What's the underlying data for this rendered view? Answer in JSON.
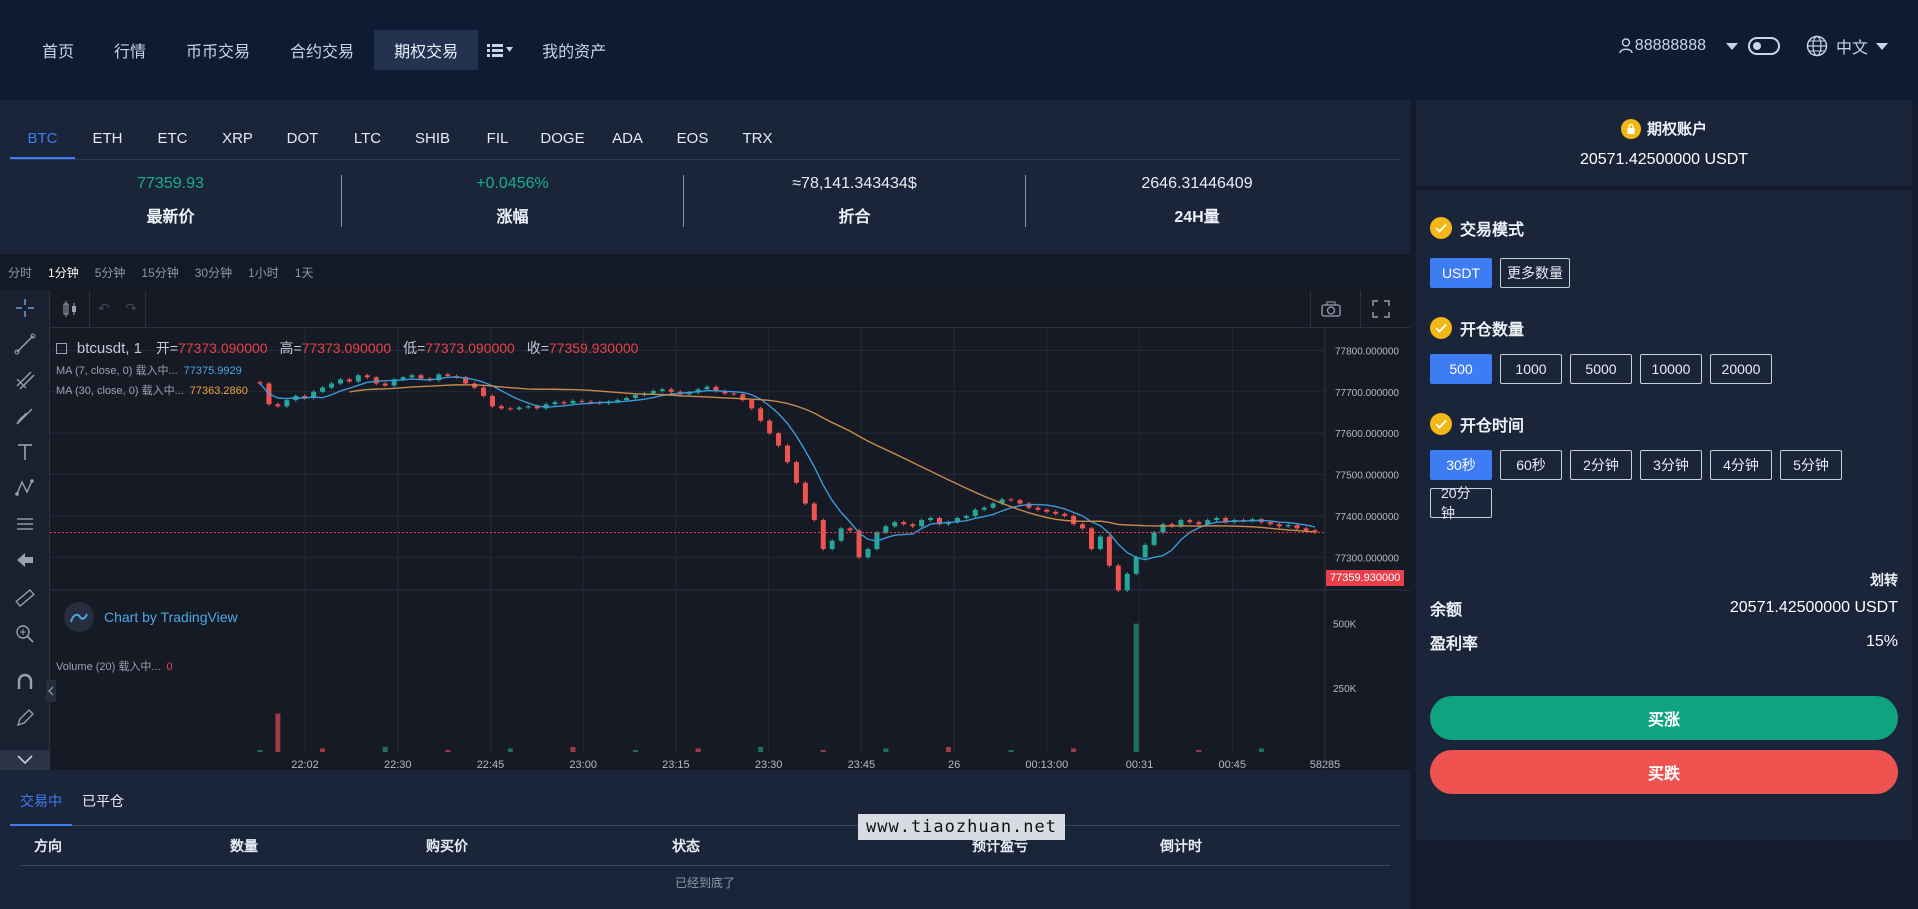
{
  "nav": {
    "items": [
      "首页",
      "行情",
      "币币交易",
      "合约交易",
      "期权交易",
      "我的资产"
    ],
    "active_index": 4,
    "user": "88888888",
    "language": "中文"
  },
  "coins": {
    "tabs": [
      "BTC",
      "ETH",
      "ETC",
      "XRP",
      "DOT",
      "LTC",
      "SHIB",
      "FIL",
      "DOGE",
      "ADA",
      "EOS",
      "TRX"
    ],
    "active_index": 0
  },
  "stats": [
    {
      "value": "77359.93",
      "label": "最新价",
      "color": "#18b088"
    },
    {
      "value": "+0.0456%",
      "label": "涨幅",
      "color": "#18b088"
    },
    {
      "value": "≈78,141.343434$",
      "label": "折合",
      "color": "#e8ecf4"
    },
    {
      "value": "2646.31446409",
      "label": "24H量",
      "color": "#e8ecf4"
    }
  ],
  "chart": {
    "intervals": [
      "分时",
      "1分钟",
      "5分钟",
      "15分钟",
      "30分钟",
      "1小时",
      "1天"
    ],
    "active_interval": 1,
    "symbol": "btcusdt, 1",
    "ohlc": {
      "open_label": "开=",
      "open": "77373.090000",
      "high_label": "高=",
      "high": "77373.090000",
      "low_label": "低=",
      "low": "77373.090000",
      "close_label": "收=",
      "close": "77359.930000"
    },
    "ma7_label": "MA (7, close, 0) 载入中...",
    "ma7_value": "77375.9929",
    "ma30_label": "MA (30, close, 0) 载入中...",
    "ma30_value": "77363.2860",
    "volume_label": "Volume (20) 载入中...",
    "volume_value": "0",
    "watermark": "Chart by TradingView",
    "price_tag": "77359.930000",
    "y_ticks": [
      "77800.000000",
      "77700.000000",
      "77600.000000",
      "77500.000000",
      "77400.000000",
      "77300.000000"
    ],
    "vol_ticks": [
      "500K",
      "250K"
    ],
    "x_ticks": [
      "22:02",
      "22:30",
      "22:45",
      "23:00",
      "23:15",
      "23:30",
      "23:45",
      "26",
      "00:13:00",
      "00:31",
      "00:45",
      "58285"
    ]
  },
  "chart_data": {
    "type": "candlestick",
    "ylim": [
      77250,
      77830
    ],
    "closes": [
      77720,
      77670,
      77665,
      77680,
      77690,
      77685,
      77700,
      77710,
      77720,
      77730,
      77725,
      77740,
      77735,
      77720,
      77715,
      77730,
      77735,
      77740,
      77732,
      77728,
      77742,
      77738,
      77735,
      77720,
      77710,
      77690,
      77665,
      77660,
      77658,
      77662,
      77665,
      77660,
      77670,
      77675,
      77672,
      77678,
      77676,
      77674,
      77672,
      77676,
      77680,
      77685,
      77692,
      77696,
      77702,
      77706,
      77700,
      77694,
      77698,
      77706,
      77712,
      77702,
      77696,
      77694,
      77680,
      77660,
      77630,
      77600,
      77570,
      77530,
      77480,
      77430,
      77390,
      77320,
      77340,
      77370,
      77365,
      77300,
      77320,
      77360,
      77375,
      77385,
      77380,
      77375,
      77390,
      77395,
      77380,
      77385,
      77395,
      77400,
      77415,
      77420,
      77430,
      77440,
      77438,
      77430,
      77420,
      77415,
      77410,
      77405,
      77400,
      77380,
      77370,
      77320,
      77350,
      77280,
      77220,
      77260,
      77300,
      77330,
      77360,
      77380,
      77375,
      77390,
      77385,
      77380,
      77390,
      77395,
      77385,
      77390,
      77388,
      77392,
      77385,
      77380,
      77375,
      77378,
      77370,
      77365,
      77360
    ],
    "volume_highlights": [
      {
        "index": 2,
        "value": 150000
      },
      {
        "index": 98,
        "value": 500000
      }
    ]
  },
  "account": {
    "title": "期权账户",
    "balance": "20571.42500000 USDT"
  },
  "trade": {
    "mode_title": "交易模式",
    "modes": [
      "USDT",
      "更多数量"
    ],
    "qty_title": "开仓数量",
    "quantities": [
      "500",
      "1000",
      "5000",
      "10000",
      "20000"
    ],
    "time_title": "开仓时间",
    "times": [
      "30秒",
      "60秒",
      "2分钟",
      "3分钟",
      "4分钟",
      "5分钟",
      "20分钟"
    ],
    "transfer": "划转",
    "balance_label": "余额",
    "balance_value": "20571.42500000 USDT",
    "profit_label": "盈利率",
    "profit_value": "15%",
    "buy_up": "买涨",
    "buy_down": "买跌"
  },
  "orders": {
    "tabs": [
      "交易中",
      "已平仓"
    ],
    "columns": [
      "方向",
      "数量",
      "购买价",
      "状态",
      "预计盈亏",
      "倒计时"
    ],
    "empty": "已经到底了"
  },
  "watermark_site": "www.tiaozhuan.net",
  "colors": {
    "accent": "#3d7cf2",
    "up": "#10a37f",
    "down": "#ef5350",
    "candle_up": "#26a69a",
    "candle_down": "#ef5350",
    "gold": "#f3b816"
  }
}
